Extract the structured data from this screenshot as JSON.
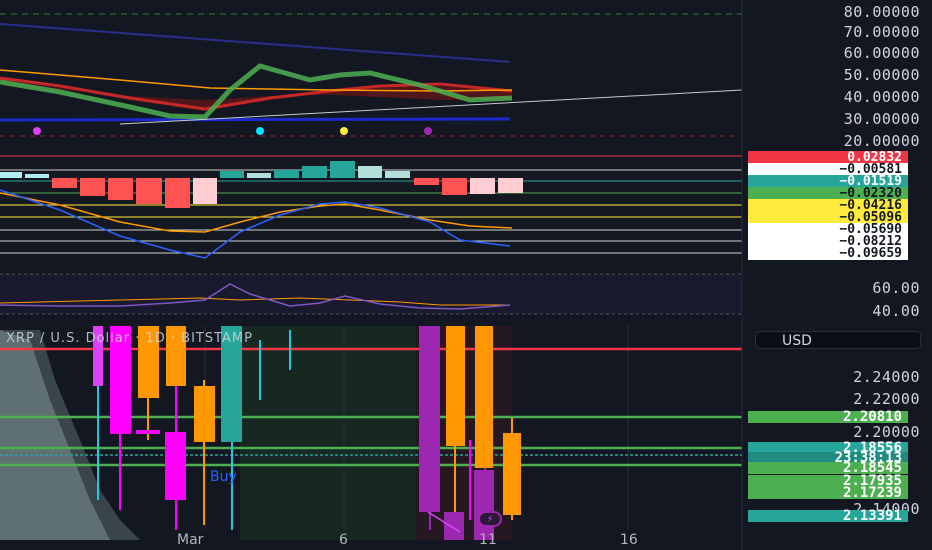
{
  "rsi_axis": [
    "80.00000",
    "70.00000",
    "60.00000",
    "50.00000",
    "40.00000",
    "30.00000",
    "20.00000"
  ],
  "macd_tags": [
    {
      "text": "0.02832",
      "bg": "#f23645",
      "fg": "#ffffff"
    },
    {
      "text": "−0.00581",
      "bg": "#ffffff",
      "fg": "#131722"
    },
    {
      "text": "−0.01519",
      "bg": "#26a69a",
      "fg": "#ffffff"
    },
    {
      "text": "−0.02320",
      "bg": "#4caf50",
      "fg": "#131722"
    },
    {
      "text": "−0.04216",
      "bg": "#ffeb3b",
      "fg": "#131722"
    },
    {
      "text": "−0.05096",
      "bg": "#ffeb3b",
      "fg": "#131722"
    },
    {
      "text": "−0.05690",
      "bg": "#ffffff",
      "fg": "#131722"
    },
    {
      "text": "−0.08212",
      "bg": "#ffffff",
      "fg": "#131722"
    },
    {
      "text": "−0.09659",
      "bg": "#ffffff",
      "fg": "#131722"
    }
  ],
  "osc_axis": [
    "60.00",
    "40.00"
  ],
  "chart_title": "XRP / U.S. Dollar · 1D · BITSTAMP",
  "currency": "USD",
  "price_axis": [
    "2.24000",
    "2.22000",
    "2.20000",
    "2.14000"
  ],
  "price_tags": [
    {
      "text": "2.20810",
      "bg": "#4caf50",
      "fg": "#ffffff"
    },
    {
      "text": "2.18556",
      "bg": "#26a69a",
      "fg": "#ffffff"
    },
    {
      "text": "23:38:13",
      "bg": "#1e8c7e",
      "fg": "#ffffff"
    },
    {
      "text": "2.18545",
      "bg": "#4caf50",
      "fg": "#ffffff"
    },
    {
      "text": "2.17935",
      "bg": "#4caf50",
      "fg": "#ffffff"
    },
    {
      "text": "2.17239",
      "bg": "#4caf50",
      "fg": "#ffffff"
    },
    {
      "text": "2.13391",
      "bg": "#26a69a",
      "fg": "#ffffff"
    }
  ],
  "x_labels": [
    "Mar",
    "6",
    "11",
    "16"
  ],
  "buy_label": "Buy",
  "colors": {
    "bg": "#131722",
    "up": "#26a69a",
    "down": "#ff00ff",
    "orange": "#ff9800",
    "purple": "#9c27b0",
    "red": "#f23645",
    "green": "#4caf50"
  }
}
